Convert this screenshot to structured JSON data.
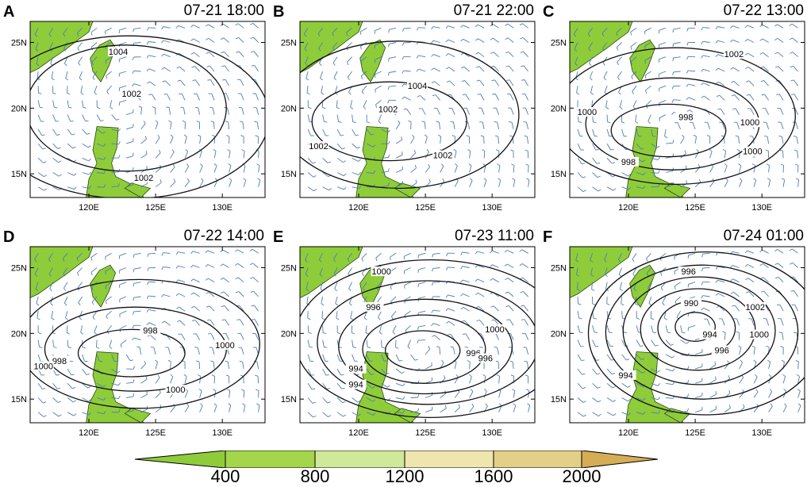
{
  "panels": [
    {
      "letter": "A",
      "time": "07-21 18:00",
      "contours": [
        "1004",
        "1002",
        "1002"
      ]
    },
    {
      "letter": "B",
      "time": "07-21 22:00",
      "contours": [
        "1004",
        "1002",
        "1002",
        "1002"
      ]
    },
    {
      "letter": "C",
      "time": "07-22 13:00",
      "contours": [
        "1002",
        "1000",
        "998",
        "998",
        "1000",
        "1000"
      ]
    },
    {
      "letter": "D",
      "time": "07-22 14:00",
      "contours": [
        "998",
        "998",
        "1000",
        "1000",
        "1000"
      ]
    },
    {
      "letter": "E",
      "time": "07-23 11:00",
      "contours": [
        "1000",
        "996",
        "994",
        "996",
        "994",
        "996",
        "1000"
      ]
    },
    {
      "letter": "F",
      "time": "07-24 01:00",
      "contours": [
        "996",
        "990",
        "994",
        "994",
        "996",
        "1002",
        "1000"
      ]
    }
  ],
  "axes": {
    "x_ticks": [
      "120E",
      "125E",
      "130E"
    ],
    "y_ticks": [
      "25N",
      "20N",
      "15N"
    ]
  },
  "colorbar": {
    "labels": [
      "400",
      "800",
      "1200",
      "1600",
      "2000"
    ],
    "colors": [
      "#8fcc3a",
      "#a6d84e",
      "#c8e38e",
      "#ece3a4",
      "#e1cc84",
      "#d9b763",
      "#d1a84c"
    ]
  }
}
